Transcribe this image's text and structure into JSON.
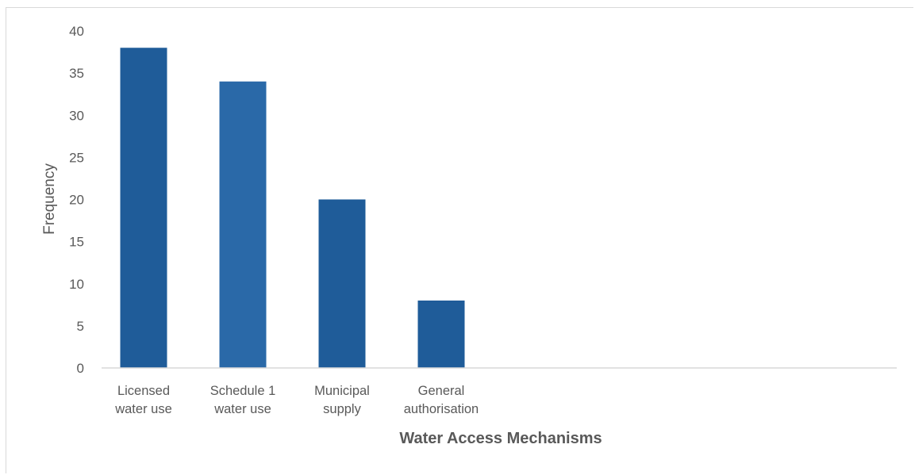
{
  "chart_data": {
    "type": "bar",
    "categories": [
      [
        "Licensed",
        "water use"
      ],
      [
        "Schedule 1",
        "water use"
      ],
      [
        "Municipal",
        "supply"
      ],
      [
        "General",
        "authorisation"
      ]
    ],
    "values": [
      38,
      34,
      20,
      8
    ],
    "xlabel": "Water Access Mechanisms",
    "ylabel": "Frequency",
    "ylim": [
      0,
      40
    ],
    "yticks": [
      0,
      5,
      10,
      15,
      20,
      25,
      30,
      35,
      40
    ],
    "grid": false,
    "colors": {
      "bar_primary": "#1f5c99",
      "bar_secondary": "#2a69a8",
      "axis": "#d9d9d9",
      "text": "#595959"
    }
  }
}
